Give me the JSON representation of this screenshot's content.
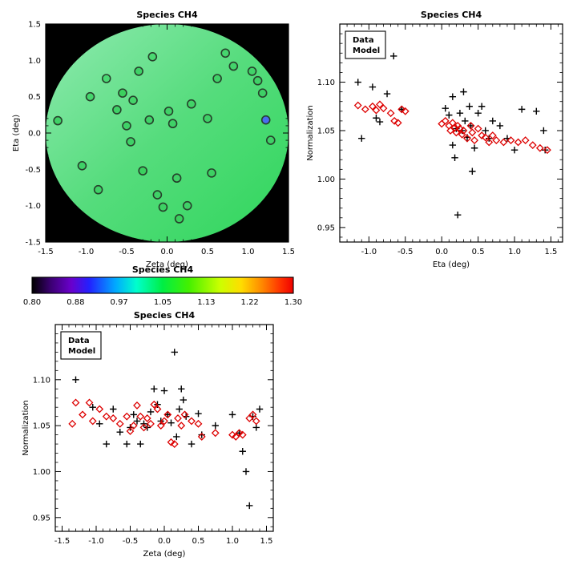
{
  "figure": {
    "background": "#ffffff"
  },
  "chart_data": [
    {
      "id": "map",
      "type": "scatter",
      "subtype": "sky-map-with-model-disk",
      "title": "Species CH4",
      "xlabel": "Zeta (deg)",
      "ylabel": "Eta (deg)",
      "xlim": [
        -1.5,
        1.5
      ],
      "ylim": [
        -1.5,
        1.5
      ],
      "xticks": [
        -1.5,
        -1.0,
        -0.5,
        0.0,
        0.5,
        1.0,
        1.5
      ],
      "xtick_labels": [
        "-1.5",
        "-1.0",
        "-0.5",
        "0.0",
        "0.5",
        "1.0",
        "1.5"
      ],
      "yticks": [
        -1.5,
        -1.0,
        -0.5,
        0.0,
        0.5,
        1.0,
        1.5
      ],
      "ytick_labels": [
        "-1.5",
        "-1.0",
        "-0.5",
        "0.0",
        "0.5",
        "1.0",
        "1.5"
      ],
      "background": "#000000",
      "grid": false,
      "disk": {
        "cx": 0.0,
        "cy": 0.0,
        "r": 1.5,
        "gradient": [
          "#8feab0",
          "#55dc7c",
          "#2fd65b"
        ]
      },
      "point_outline": "#26402b",
      "points": [
        {
          "x": -1.35,
          "y": 0.17,
          "color": "#3fd167"
        },
        {
          "x": -1.05,
          "y": -0.45,
          "color": "#3fd167"
        },
        {
          "x": -0.95,
          "y": 0.5,
          "color": "#45d66d"
        },
        {
          "x": -0.85,
          "y": -0.78,
          "color": "#3fd167"
        },
        {
          "x": -0.75,
          "y": 0.75,
          "color": "#49d973"
        },
        {
          "x": -0.62,
          "y": 0.32,
          "color": "#3fd167"
        },
        {
          "x": -0.55,
          "y": 0.55,
          "color": "#3cd05e"
        },
        {
          "x": -0.5,
          "y": 0.1,
          "color": "#3fd167"
        },
        {
          "x": -0.45,
          "y": -0.12,
          "color": "#3fd167"
        },
        {
          "x": -0.42,
          "y": 0.45,
          "color": "#44d46a"
        },
        {
          "x": -0.35,
          "y": 0.85,
          "color": "#3fd167"
        },
        {
          "x": -0.3,
          "y": -0.52,
          "color": "#3bd05f"
        },
        {
          "x": -0.22,
          "y": 0.18,
          "color": "#3fd167"
        },
        {
          "x": -0.18,
          "y": 1.05,
          "color": "#4ad871"
        },
        {
          "x": -0.12,
          "y": -0.85,
          "color": "#3fd167"
        },
        {
          "x": -0.05,
          "y": -1.02,
          "color": "#3dd164"
        },
        {
          "x": 0.02,
          "y": 0.3,
          "color": "#3fd167"
        },
        {
          "x": 0.07,
          "y": 0.13,
          "color": "#3fd167"
        },
        {
          "x": 0.12,
          "y": -0.62,
          "color": "#3fd167"
        },
        {
          "x": 0.15,
          "y": -1.18,
          "color": "#3bcf5e"
        },
        {
          "x": 0.25,
          "y": -1.0,
          "color": "#3fd167"
        },
        {
          "x": 0.3,
          "y": 0.4,
          "color": "#42d368"
        },
        {
          "x": 0.5,
          "y": 0.2,
          "color": "#3fd167"
        },
        {
          "x": 0.55,
          "y": -0.55,
          "color": "#3dd063"
        },
        {
          "x": 0.62,
          "y": 0.75,
          "color": "#40d268"
        },
        {
          "x": 0.72,
          "y": 1.1,
          "color": "#46d66e"
        },
        {
          "x": 0.82,
          "y": 0.92,
          "color": "#43d46b"
        },
        {
          "x": 1.05,
          "y": 0.85,
          "color": "#41d369"
        },
        {
          "x": 1.12,
          "y": 0.72,
          "color": "#3fd167"
        },
        {
          "x": 1.18,
          "y": 0.55,
          "color": "#3ed066"
        },
        {
          "x": 1.22,
          "y": 0.18,
          "color": "#4a6cf0"
        },
        {
          "x": 1.28,
          "y": -0.1,
          "color": "#3fd167"
        }
      ]
    },
    {
      "id": "colorbar",
      "type": "heatmap",
      "subtype": "colorbar",
      "title": "Species CH4",
      "range": [
        0.8,
        1.3
      ],
      "tick_labels": [
        "0.80",
        "0.88",
        "0.97",
        "1.05",
        "1.13",
        "1.22",
        "1.30"
      ],
      "stops": [
        {
          "pos": 0.0,
          "color": "#000000"
        },
        {
          "pos": 0.07,
          "color": "#3a0070"
        },
        {
          "pos": 0.15,
          "color": "#6a00cc"
        },
        {
          "pos": 0.22,
          "color": "#2222ff"
        },
        {
          "pos": 0.32,
          "color": "#00aaff"
        },
        {
          "pos": 0.4,
          "color": "#00ffcc"
        },
        {
          "pos": 0.5,
          "color": "#00ee44"
        },
        {
          "pos": 0.6,
          "color": "#44f000"
        },
        {
          "pos": 0.72,
          "color": "#ccff00"
        },
        {
          "pos": 0.8,
          "color": "#ffdd00"
        },
        {
          "pos": 0.88,
          "color": "#ff8800"
        },
        {
          "pos": 0.95,
          "color": "#ff3300"
        },
        {
          "pos": 1.0,
          "color": "#ee0000"
        }
      ]
    },
    {
      "id": "eta_scatter",
      "type": "scatter",
      "title": "Species CH4",
      "xlabel": "Eta (deg)",
      "ylabel": "Normalization",
      "xlim": [
        -1.4,
        1.66
      ],
      "ylim": [
        0.935,
        1.16
      ],
      "xticks": [
        -1.0,
        -0.5,
        0.0,
        0.5,
        1.0,
        1.5
      ],
      "xtick_labels": [
        "-1.0",
        "-0.5",
        "0.0",
        "0.5",
        "1.0",
        "1.5"
      ],
      "yticks": [
        0.95,
        1.0,
        1.05,
        1.1
      ],
      "ytick_labels": [
        "0.95",
        "1.00",
        "1.05",
        "1.10"
      ],
      "grid": false,
      "legend": {
        "position": "top-left",
        "entries": [
          {
            "label": "Data",
            "color": "#000000"
          },
          {
            "label": "Model",
            "color": "#dd0000"
          }
        ]
      },
      "series": [
        {
          "name": "Data",
          "marker": "plus",
          "color": "#000000",
          "x": [
            -1.15,
            -1.1,
            -0.95,
            -0.9,
            -0.66,
            -0.75,
            -0.55,
            -0.85,
            0.05,
            0.1,
            0.15,
            0.15,
            0.18,
            0.2,
            0.22,
            0.25,
            0.28,
            0.3,
            0.32,
            0.35,
            0.38,
            0.4,
            0.42,
            0.45,
            0.5,
            0.55,
            0.6,
            0.65,
            0.7,
            0.8,
            0.9,
            1.0,
            1.1,
            1.3,
            1.4,
            1.42
          ],
          "y": [
            1.1,
            1.042,
            1.095,
            1.063,
            1.127,
            1.088,
            1.072,
            1.059,
            1.073,
            1.066,
            1.085,
            1.035,
            1.022,
            1.052,
            0.963,
            1.068,
            1.05,
            1.09,
            1.06,
            1.043,
            1.075,
            1.055,
            1.008,
            1.032,
            1.068,
            1.075,
            1.05,
            1.042,
            1.06,
            1.055,
            1.042,
            1.03,
            1.072,
            1.07,
            1.05,
            1.03
          ]
        },
        {
          "name": "Model",
          "marker": "diamond",
          "color": "#dd0000",
          "x": [
            -1.15,
            -1.05,
            -0.95,
            -0.9,
            -0.85,
            -0.8,
            -0.7,
            -0.65,
            -0.6,
            -0.55,
            -0.5,
            0.0,
            0.05,
            0.1,
            0.12,
            0.15,
            0.18,
            0.2,
            0.22,
            0.25,
            0.28,
            0.3,
            0.35,
            0.4,
            0.42,
            0.45,
            0.5,
            0.55,
            0.6,
            0.65,
            0.7,
            0.75,
            0.85,
            0.95,
            1.05,
            1.15,
            1.25,
            1.35,
            1.45
          ],
          "y": [
            1.076,
            1.072,
            1.075,
            1.071,
            1.077,
            1.073,
            1.068,
            1.06,
            1.058,
            1.072,
            1.07,
            1.057,
            1.06,
            1.055,
            1.05,
            1.058,
            1.053,
            1.048,
            1.055,
            1.052,
            1.046,
            1.05,
            1.042,
            1.055,
            1.048,
            1.04,
            1.052,
            1.045,
            1.043,
            1.038,
            1.045,
            1.04,
            1.038,
            1.04,
            1.038,
            1.04,
            1.035,
            1.032,
            1.03
          ]
        }
      ]
    },
    {
      "id": "zeta_scatter",
      "type": "scatter",
      "title": "Species CH4",
      "xlabel": "Zeta (deg)",
      "ylabel": "Normalization",
      "xlim": [
        -1.6,
        1.6
      ],
      "ylim": [
        0.935,
        1.16
      ],
      "xticks": [
        -1.5,
        -1.0,
        -0.5,
        0.0,
        0.5,
        1.0,
        1.5
      ],
      "xtick_labels": [
        "-1.5",
        "-1.0",
        "-0.5",
        "0.0",
        "0.5",
        "1.0",
        "1.5"
      ],
      "yticks": [
        0.95,
        1.0,
        1.05,
        1.1
      ],
      "ytick_labels": [
        "0.95",
        "1.00",
        "1.05",
        "1.10"
      ],
      "grid": false,
      "legend": {
        "position": "top-left",
        "entries": [
          {
            "label": "Data",
            "color": "#000000"
          },
          {
            "label": "Model",
            "color": "#dd0000"
          }
        ]
      },
      "series": [
        {
          "name": "Data",
          "marker": "plus",
          "color": "#000000",
          "x": [
            -1.3,
            -1.05,
            -0.95,
            -0.85,
            -0.75,
            -0.65,
            -0.55,
            -0.5,
            -0.45,
            -0.4,
            -0.35,
            -0.3,
            -0.25,
            -0.2,
            -0.15,
            -0.1,
            -0.05,
            0.0,
            0.05,
            0.1,
            0.15,
            0.18,
            0.22,
            0.25,
            0.28,
            0.32,
            0.4,
            0.5,
            0.55,
            0.75,
            1.0,
            1.1,
            1.15,
            1.2,
            1.25,
            1.3,
            1.35,
            1.4
          ],
          "y": [
            1.1,
            1.07,
            1.052,
            1.03,
            1.068,
            1.043,
            1.03,
            1.048,
            1.062,
            1.055,
            1.03,
            1.052,
            1.048,
            1.065,
            1.09,
            1.073,
            1.055,
            1.088,
            1.062,
            1.053,
            1.13,
            1.038,
            1.068,
            1.09,
            1.078,
            1.06,
            1.03,
            1.063,
            1.04,
            1.05,
            1.062,
            1.042,
            1.022,
            1.0,
            0.963,
            1.06,
            1.048,
            1.068
          ]
        },
        {
          "name": "Model",
          "marker": "diamond",
          "color": "#dd0000",
          "x": [
            -1.35,
            -1.3,
            -1.2,
            -1.1,
            -1.05,
            -0.95,
            -0.85,
            -0.75,
            -0.65,
            -0.55,
            -0.5,
            -0.45,
            -0.4,
            -0.35,
            -0.3,
            -0.25,
            -0.2,
            -0.15,
            -0.1,
            -0.05,
            0.0,
            0.05,
            0.1,
            0.15,
            0.2,
            0.25,
            0.3,
            0.4,
            0.5,
            0.55,
            0.75,
            1.0,
            1.05,
            1.1,
            1.15,
            1.25,
            1.3,
            1.35
          ],
          "y": [
            1.052,
            1.075,
            1.062,
            1.075,
            1.055,
            1.068,
            1.06,
            1.058,
            1.052,
            1.06,
            1.044,
            1.05,
            1.072,
            1.06,
            1.048,
            1.058,
            1.052,
            1.073,
            1.068,
            1.05,
            1.055,
            1.062,
            1.032,
            1.03,
            1.058,
            1.05,
            1.062,
            1.055,
            1.052,
            1.038,
            1.042,
            1.04,
            1.038,
            1.042,
            1.04,
            1.058,
            1.062,
            1.055
          ]
        }
      ]
    }
  ]
}
